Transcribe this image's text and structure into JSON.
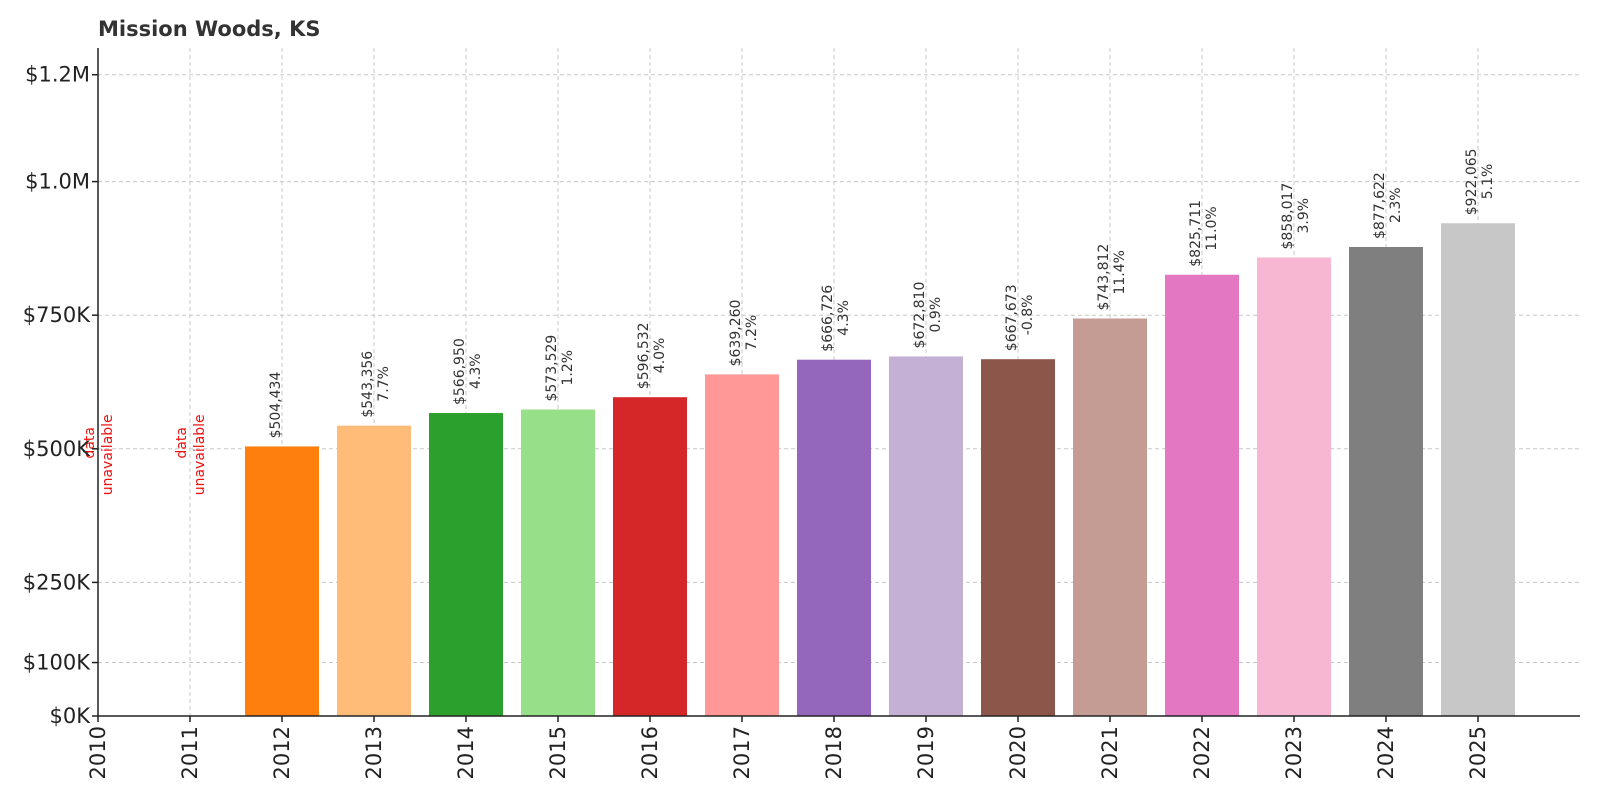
{
  "chart_data": {
    "type": "bar",
    "title": "Mission Woods, KS",
    "categories": [
      "2010",
      "2011",
      "2012",
      "2013",
      "2014",
      "2015",
      "2016",
      "2017",
      "2018",
      "2019",
      "2020",
      "2021",
      "2022",
      "2023",
      "2024",
      "2025"
    ],
    "values": [
      null,
      null,
      504434,
      543356,
      566950,
      573529,
      596532,
      639260,
      666726,
      672810,
      667673,
      743812,
      825711,
      858017,
      877622,
      922065
    ],
    "value_labels": [
      "",
      "",
      "$504,434",
      "$543,356",
      "$566,950",
      "$573,529",
      "$596,532",
      "$639,260",
      "$666,726",
      "$672,810",
      "$667,673",
      "$743,812",
      "$825,711",
      "$858,017",
      "$877,622",
      "$922,065"
    ],
    "change_labels": [
      "",
      "",
      "",
      "7.7%",
      "4.3%",
      "1.2%",
      "4.0%",
      "7.2%",
      "4.3%",
      "0.9%",
      "-0.8%",
      "11.4%",
      "11.0%",
      "3.9%",
      "2.3%",
      "5.1%"
    ],
    "unavailable_label": [
      "data",
      "unavailable"
    ],
    "colors": [
      "#1f77b4",
      "#aec7e8",
      "#ff7f0e",
      "#ffbb78",
      "#2ca02c",
      "#98df8a",
      "#d62728",
      "#ff9896",
      "#9467bd",
      "#c5b0d5",
      "#8c564b",
      "#c49c94",
      "#e377c2",
      "#f7b6d2",
      "#7f7f7f",
      "#c7c7c7"
    ],
    "unavailable_color": "#ee1111",
    "yticks": [
      0,
      100000,
      250000,
      500000,
      750000,
      1000000,
      1200000
    ],
    "ytick_labels": [
      "$0K",
      "$100K",
      "$250K",
      "$500K",
      "$750K",
      "$1.0M",
      "$1.2M"
    ],
    "ylim": [
      0,
      1250000
    ],
    "xlabel": "",
    "ylabel": "",
    "grid": true
  }
}
